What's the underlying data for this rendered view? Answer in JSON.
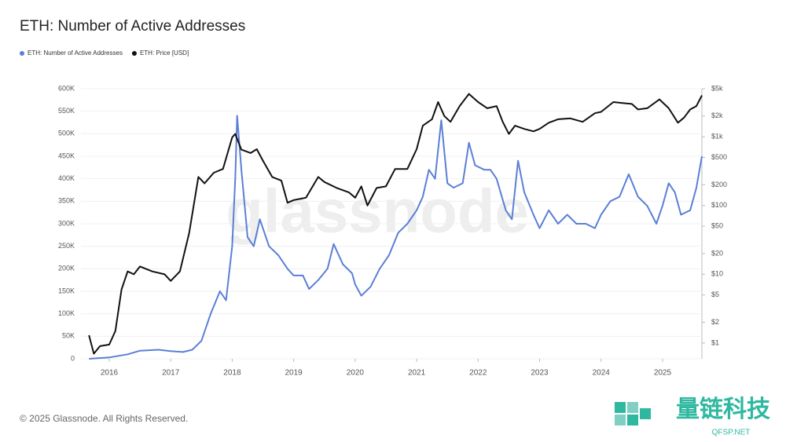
{
  "chart_data": {
    "type": "line",
    "title": "ETH: Number of Active Addresses",
    "footer": "© 2025 Glassnode. All Rights Reserved.",
    "watermark": "glassnode",
    "brand": {
      "name": "量链科技",
      "site": "QFSP.NET"
    },
    "xlim": [
      2015.54,
      2025.64
    ],
    "xticks": [
      2016,
      2017,
      2018,
      2019,
      2020,
      2021,
      2022,
      2023,
      2024,
      2025
    ],
    "ylim": [
      0,
      600000
    ],
    "yticks": [
      0,
      {
        "value": 50000,
        "label": "50K"
      },
      {
        "value": 100000,
        "label": "100K"
      },
      {
        "value": 150000,
        "label": "150K"
      },
      {
        "value": 200000,
        "label": "200K"
      },
      {
        "value": 250000,
        "label": "250K"
      },
      {
        "value": 300000,
        "label": "300K"
      },
      {
        "value": 350000,
        "label": "350K"
      },
      {
        "value": 400000,
        "label": "400K"
      },
      {
        "value": 450000,
        "label": "450K"
      },
      {
        "value": 500000,
        "label": "500K"
      },
      {
        "value": 550000,
        "label": "550K"
      },
      {
        "value": 600000,
        "label": "600K"
      }
    ],
    "y2lim": [
      0.59,
      5000
    ],
    "y2log": true,
    "y2ticks": [
      {
        "value": 1,
        "label": "$1"
      },
      {
        "value": 2,
        "label": "$2"
      },
      {
        "value": 5,
        "label": "$5"
      },
      {
        "value": 10,
        "label": "$10"
      },
      {
        "value": 20,
        "label": "$20"
      },
      {
        "value": 50,
        "label": "$50"
      },
      {
        "value": 100,
        "label": "$100"
      },
      {
        "value": 200,
        "label": "$200"
      },
      {
        "value": 500,
        "label": "$500"
      },
      {
        "value": 1000,
        "label": "$1k"
      },
      {
        "value": 2000,
        "label": "$2k"
      },
      {
        "value": 5000,
        "label": "$5k"
      }
    ],
    "series": [
      {
        "name": "ETH: Number of Active Addresses",
        "color": "#5b7fd6",
        "x": [
          2015.67,
          2016.0,
          2016.3,
          2016.5,
          2016.8,
          2017.0,
          2017.2,
          2017.35,
          2017.5,
          2017.65,
          2017.8,
          2017.9,
          2018.0,
          2018.05,
          2018.08,
          2018.15,
          2018.25,
          2018.35,
          2018.45,
          2018.6,
          2018.75,
          2018.9,
          2019.0,
          2019.15,
          2019.25,
          2019.4,
          2019.55,
          2019.65,
          2019.8,
          2019.95,
          2020.0,
          2020.1,
          2020.25,
          2020.4,
          2020.55,
          2020.7,
          2020.85,
          2021.0,
          2021.1,
          2021.2,
          2021.3,
          2021.4,
          2021.5,
          2021.6,
          2021.75,
          2021.85,
          2021.95,
          2022.1,
          2022.2,
          2022.3,
          2022.45,
          2022.55,
          2022.65,
          2022.75,
          2022.9,
          2023.0,
          2023.15,
          2023.3,
          2023.45,
          2023.6,
          2023.75,
          2023.9,
          2024.0,
          2024.15,
          2024.3,
          2024.45,
          2024.6,
          2024.75,
          2024.9,
          2025.0,
          2025.1,
          2025.2,
          2025.3,
          2025.45,
          2025.55,
          2025.64
        ],
        "values": [
          0,
          3000,
          10000,
          18000,
          20000,
          17000,
          15000,
          20000,
          40000,
          100000,
          150000,
          130000,
          250000,
          400000,
          540000,
          420000,
          270000,
          250000,
          310000,
          250000,
          230000,
          200000,
          185000,
          185000,
          155000,
          175000,
          200000,
          255000,
          210000,
          190000,
          165000,
          140000,
          160000,
          200000,
          230000,
          280000,
          300000,
          330000,
          360000,
          420000,
          400000,
          530000,
          390000,
          380000,
          390000,
          480000,
          430000,
          420000,
          420000,
          400000,
          330000,
          310000,
          440000,
          370000,
          320000,
          290000,
          330000,
          300000,
          320000,
          300000,
          300000,
          290000,
          320000,
          350000,
          360000,
          410000,
          360000,
          340000,
          300000,
          340000,
          390000,
          370000,
          320000,
          330000,
          380000,
          450000
        ]
      },
      {
        "name": "ETH: Price [USD]",
        "color": "#111111",
        "axis": "y2",
        "x": [
          2015.67,
          2015.75,
          2015.85,
          2016.0,
          2016.1,
          2016.2,
          2016.3,
          2016.4,
          2016.5,
          2016.7,
          2016.9,
          2017.0,
          2017.15,
          2017.3,
          2017.45,
          2017.55,
          2017.7,
          2017.85,
          2018.0,
          2018.05,
          2018.15,
          2018.3,
          2018.4,
          2018.5,
          2018.65,
          2018.8,
          2018.9,
          2019.0,
          2019.2,
          2019.4,
          2019.5,
          2019.7,
          2019.9,
          2020.0,
          2020.1,
          2020.2,
          2020.35,
          2020.5,
          2020.65,
          2020.85,
          2021.0,
          2021.1,
          2021.25,
          2021.35,
          2021.45,
          2021.55,
          2021.7,
          2021.85,
          2022.0,
          2022.15,
          2022.3,
          2022.4,
          2022.5,
          2022.6,
          2022.75,
          2022.9,
          2023.0,
          2023.15,
          2023.3,
          2023.5,
          2023.7,
          2023.9,
          2024.0,
          2024.2,
          2024.35,
          2024.5,
          2024.6,
          2024.75,
          2024.95,
          2025.1,
          2025.25,
          2025.35,
          2025.45,
          2025.55,
          2025.64
        ],
        "values": [
          1.3,
          0.7,
          0.9,
          0.95,
          1.5,
          6,
          11,
          10,
          13,
          11,
          10,
          8,
          11,
          40,
          260,
          210,
          300,
          340,
          980,
          1100,
          650,
          580,
          660,
          450,
          260,
          230,
          110,
          120,
          130,
          260,
          220,
          180,
          155,
          130,
          190,
          100,
          180,
          190,
          340,
          340,
          660,
          1450,
          1800,
          3200,
          2000,
          1650,
          2800,
          4200,
          3200,
          2600,
          2800,
          1650,
          1100,
          1450,
          1300,
          1200,
          1300,
          1600,
          1800,
          1850,
          1650,
          2200,
          2300,
          3200,
          3100,
          3000,
          2500,
          2600,
          3500,
          2600,
          1600,
          1900,
          2500,
          2800,
          4000
        ]
      }
    ]
  }
}
